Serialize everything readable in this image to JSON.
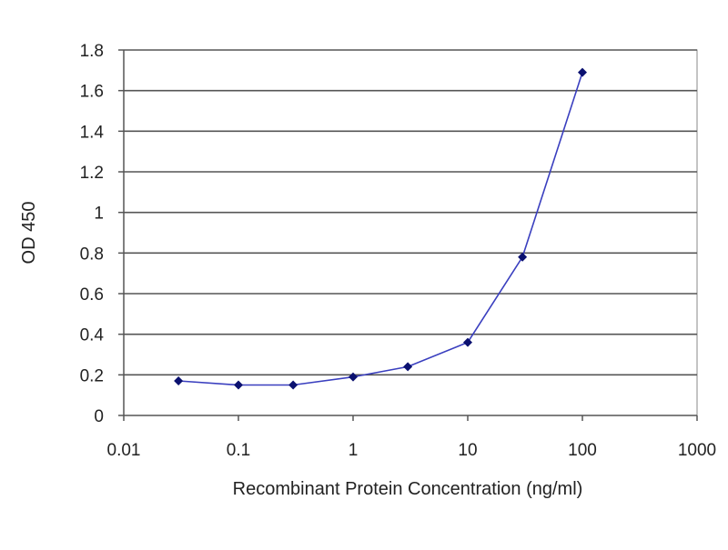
{
  "chart_data": {
    "type": "line",
    "xscale": "log",
    "title": "",
    "xlabel": "Recombinant Protein Concentration (ng/ml)",
    "ylabel": "OD 450",
    "xlim": [
      0.01,
      1000
    ],
    "ylim": [
      0,
      1.8
    ],
    "x_ticks": [
      0.01,
      0.1,
      1,
      10,
      100,
      1000
    ],
    "x_tick_labels": [
      "0.01",
      "0.1",
      "1",
      "10",
      "100",
      "1000"
    ],
    "y_ticks": [
      0,
      0.2,
      0.4,
      0.6,
      0.8,
      1,
      1.2,
      1.4,
      1.6,
      1.8
    ],
    "y_tick_labels": [
      "0",
      "0.2",
      "0.4",
      "0.6",
      "0.8",
      "1",
      "1.2",
      "1.4",
      "1.6",
      "1.8"
    ],
    "grid": "horizontal",
    "legend": "none",
    "series": [
      {
        "x": [
          0.03,
          0.1,
          0.3,
          1,
          3,
          10,
          30,
          100
        ],
        "y": [
          0.17,
          0.15,
          0.15,
          0.19,
          0.24,
          0.36,
          0.78,
          1.69
        ]
      }
    ],
    "colors": {
      "line": "#3a3fbf",
      "marker": "#0b1170",
      "grid": "#555555",
      "axis": "#555555"
    }
  }
}
